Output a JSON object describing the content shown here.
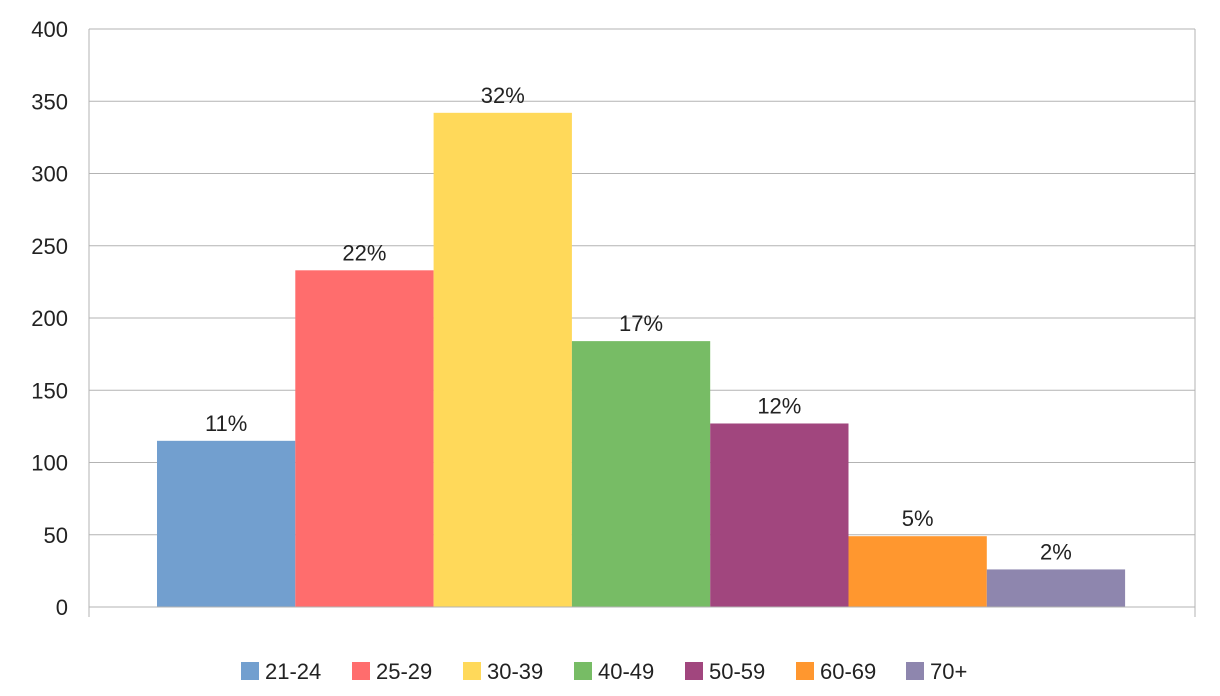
{
  "chart_data": {
    "type": "bar",
    "categories": [
      "21-24",
      "25-29",
      "30-39",
      "40-49",
      "50-59",
      "60-69",
      "70+"
    ],
    "values": [
      115,
      233,
      342,
      184,
      127,
      49,
      26
    ],
    "data_labels": [
      "11%",
      "22%",
      "32%",
      "17%",
      "12%",
      "5%",
      "2%"
    ],
    "colors": [
      "#729fcf",
      "#ff6d6d",
      "#ffd95a",
      "#77bc65",
      "#a1467e",
      "#ff972f",
      "#8e86ae"
    ],
    "ylim": [
      0,
      400
    ],
    "yticks": [
      0,
      50,
      100,
      150,
      200,
      250,
      300,
      350,
      400
    ],
    "grid": true,
    "legend": "bottom",
    "title": "",
    "xlabel": "",
    "ylabel": ""
  }
}
